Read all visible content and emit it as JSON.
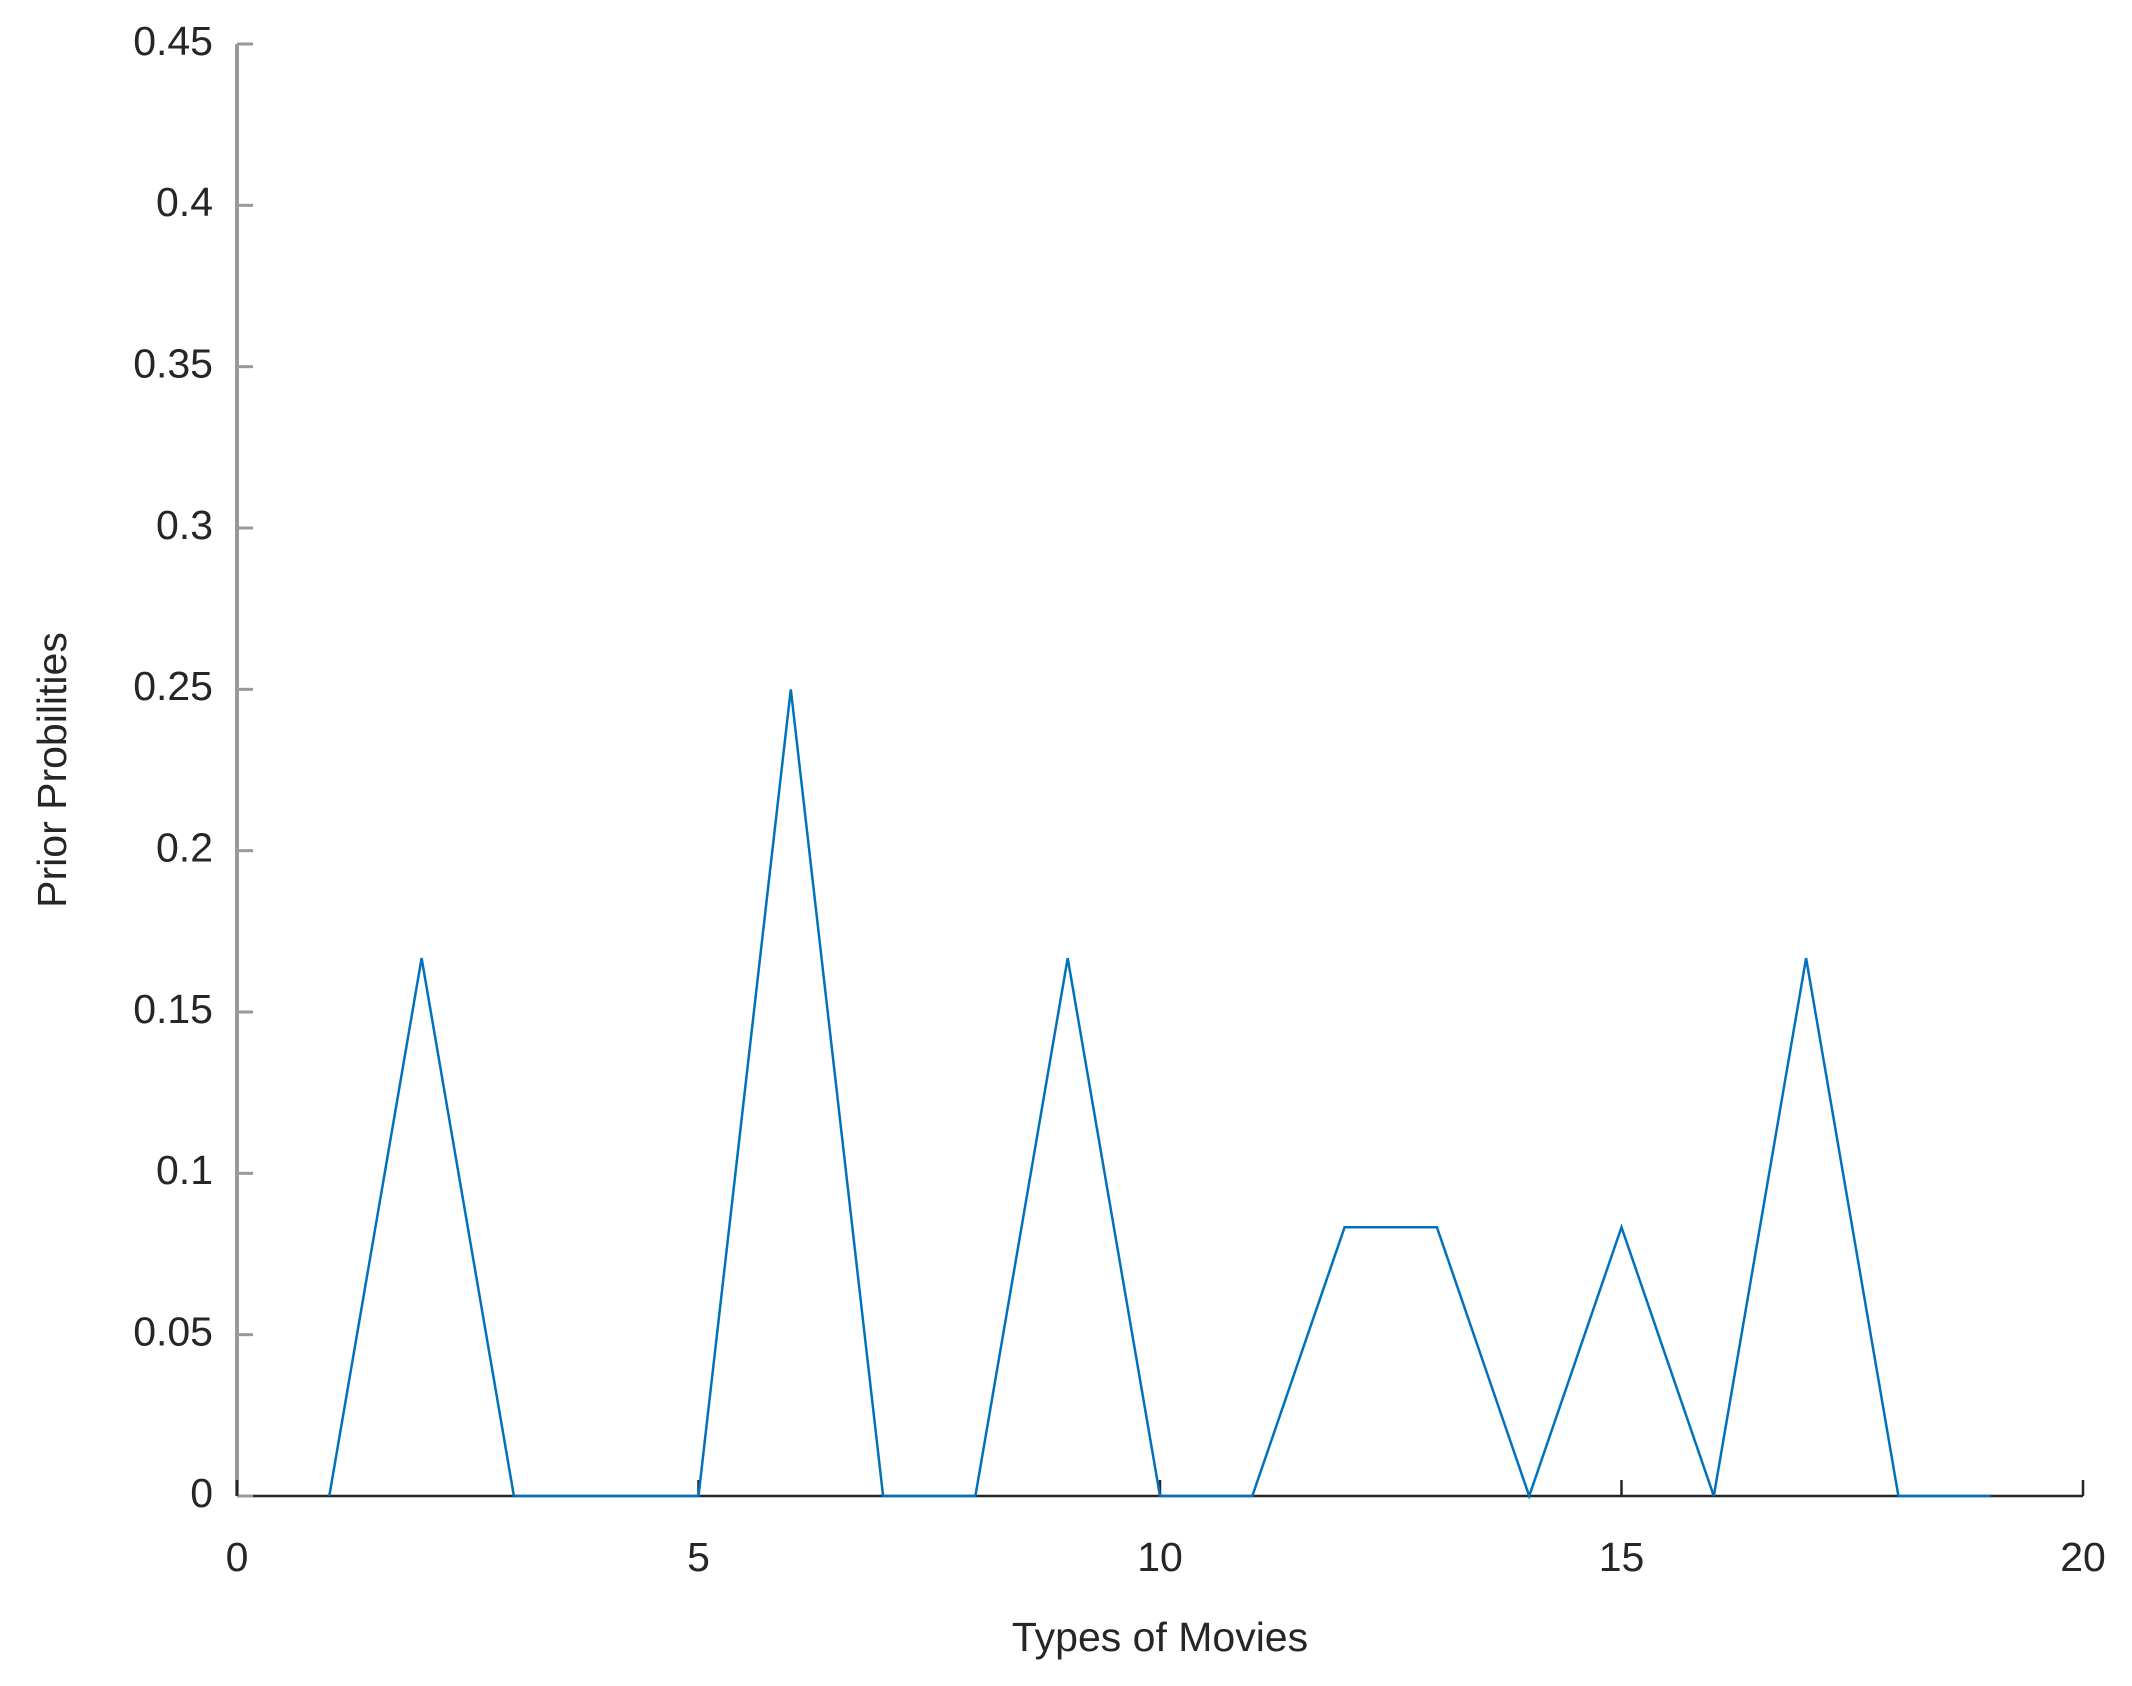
{
  "chart_data": {
    "type": "line",
    "xlabel": "Types of Movies",
    "ylabel": "Prior Probilities",
    "x": [
      1,
      2,
      3,
      4,
      5,
      6,
      7,
      8,
      9,
      10,
      11,
      12,
      13,
      14,
      15,
      16,
      17,
      18,
      19
    ],
    "series": [
      {
        "color": "#0072bd",
        "values": [
          0,
          0.1667,
          0,
          0,
          0,
          0.25,
          0,
          0,
          0.1667,
          0,
          0,
          0.0833,
          0.0833,
          0,
          0.0833,
          0,
          0.1667,
          0,
          0
        ]
      }
    ],
    "xlim": [
      0,
      20
    ],
    "xticks": [
      0,
      5,
      10,
      15,
      20
    ],
    "ylim": [
      0,
      0.45
    ],
    "yticks": [
      0,
      0.05,
      0.1,
      0.15,
      0.2,
      0.25,
      0.3,
      0.35,
      0.4,
      0.45
    ],
    "grid": false
  }
}
